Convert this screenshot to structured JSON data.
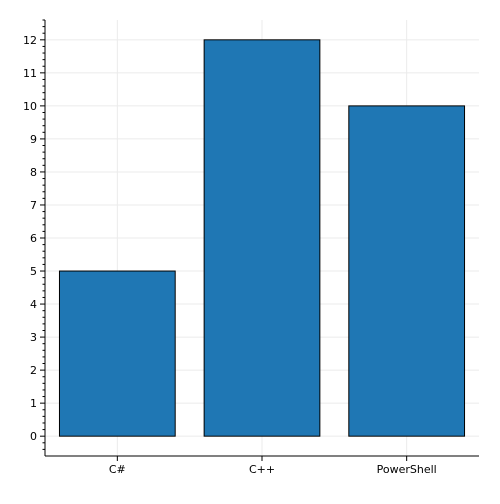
{
  "chart_data": {
    "type": "bar",
    "title": "",
    "xlabel": "",
    "ylabel": "",
    "categories": [
      "C#",
      "C++",
      "PowerShell"
    ],
    "values": [
      5,
      12,
      10
    ],
    "ylim": [
      -0.6,
      12.6
    ],
    "yticks": [
      0,
      1,
      2,
      3,
      4,
      5,
      6,
      7,
      8,
      9,
      10,
      11,
      12
    ],
    "grid": true,
    "legend": "none",
    "colors": {
      "bar_fill": "#1f77b4",
      "bar_edge": "#000000",
      "grid": "#ebebeb",
      "axis": "#000000"
    }
  }
}
